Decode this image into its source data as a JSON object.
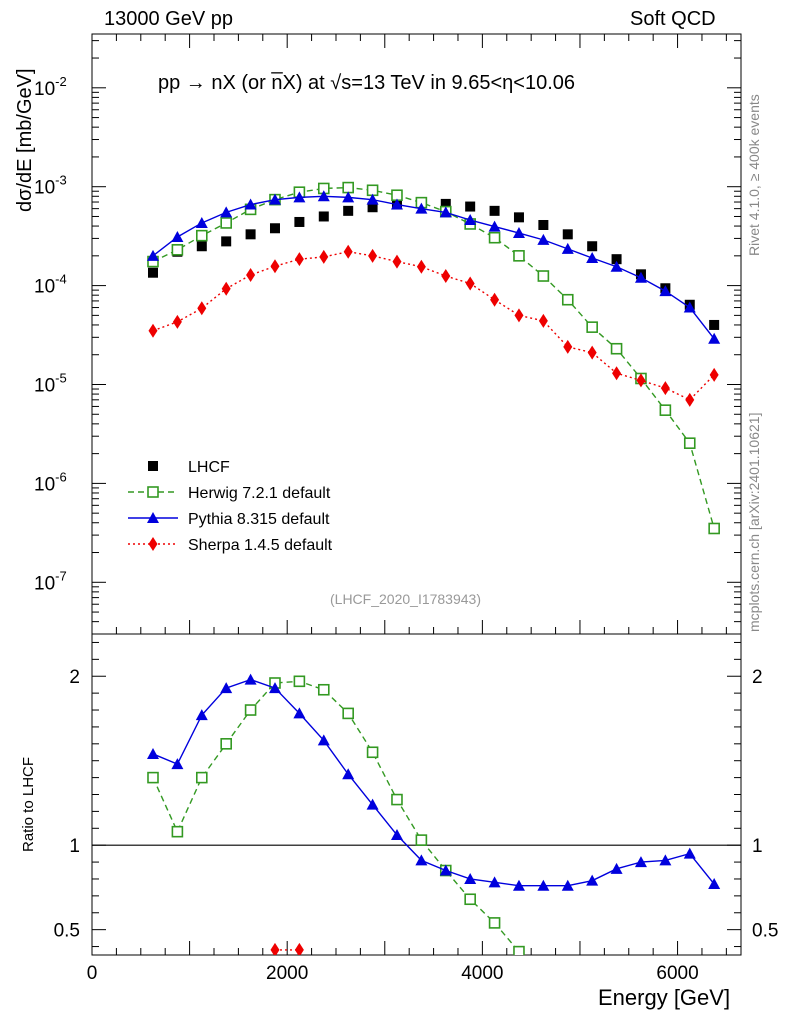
{
  "header": {
    "left": "13000 GeV pp",
    "right": "Soft QCD"
  },
  "side_labels": {
    "rivet": "Rivet 4.1.0, ≥ 400k events",
    "mcplots": "mcplots.cern.ch [arXiv:2401.10621]"
  },
  "analysis_tag": "(LHCF_2020_I1783943)",
  "colors": {
    "lhcf": "#000000",
    "herwig": "#339922",
    "pythia": "#0000dd",
    "sherpa": "#ee0000"
  },
  "chart_data": [
    {
      "type": "line",
      "panel": "main",
      "title": "pp → nX (or n̅X) at √s=13 TeV in 9.65<η<10.06",
      "xlabel": "Energy [GeV]",
      "ylabel": "dσ/dE [mb/GeV]",
      "yscale": "log",
      "xlim": [
        0,
        6650
      ],
      "ylim": [
        3e-08,
        0.035
      ],
      "x_ticks": [
        0,
        2000,
        4000,
        6000
      ],
      "y_ticks": [
        "10^-7",
        "10^-6",
        "10^-5",
        "10^-4",
        "10^-3",
        "10^-2"
      ],
      "x": [
        625,
        875,
        1125,
        1375,
        1625,
        1875,
        2125,
        2375,
        2625,
        2875,
        3125,
        3375,
        3625,
        3875,
        4125,
        4375,
        4625,
        4875,
        5125,
        5375,
        5625,
        5875,
        6125,
        6375
      ],
      "series": [
        {
          "name": "LHCF",
          "style": "markers",
          "marker": "square-filled",
          "values": [
            0.000135,
            0.00022,
            0.00025,
            0.00028,
            0.00033,
            0.00038,
            0.00044,
            0.0005,
            0.00057,
            0.00062,
            0.00066,
            0.0007,
            0.00067,
            0.00063,
            0.00057,
            0.00049,
            0.00041,
            0.00033,
            0.00025,
            0.000185,
            0.00013,
            9.4e-05,
            6.4e-05,
            4e-05
          ]
        },
        {
          "name": "Herwig 7.2.1 default",
          "style": "dashed",
          "marker": "square-open",
          "values": [
            0.000175,
            0.00023,
            0.00032,
            0.00043,
            0.00059,
            0.00074,
            0.00088,
            0.00096,
            0.00098,
            0.00092,
            0.00082,
            0.00069,
            0.00056,
            0.00042,
            0.000305,
            0.0002,
            0.000125,
            7.2e-05,
            3.8e-05,
            2.3e-05,
            1.15e-05,
            5.5e-06,
            2.55e-06,
            3.5e-07
          ]
        },
        {
          "name": "Pythia 8.315 default",
          "style": "solid",
          "marker": "triangle-filled",
          "values": [
            0.0002,
            0.00031,
            0.00043,
            0.00055,
            0.00066,
            0.00074,
            0.00078,
            0.0008,
            0.00078,
            0.00074,
            0.00066,
            0.0006,
            0.00055,
            0.00046,
            0.000395,
            0.00034,
            0.00029,
            0.000235,
            0.00019,
            0.000155,
            0.00012,
            8.8e-05,
            6e-05,
            2.9e-05
          ]
        },
        {
          "name": "Sherpa 1.4.5 default",
          "style": "dotted",
          "marker": "diamond-filled",
          "values": [
            3.5e-05,
            4.3e-05,
            5.9e-05,
            9.3e-05,
            0.000128,
            0.000157,
            0.000185,
            0.000195,
            0.00022,
            0.0002,
            0.000175,
            0.000155,
            0.000125,
            0.000105,
            7.2e-05,
            5e-05,
            4.4e-05,
            2.4e-05,
            2.1e-05,
            1.3e-05,
            1.1e-05,
            9.2e-06,
            7e-06,
            1.25e-05
          ]
        }
      ]
    },
    {
      "type": "line",
      "panel": "ratio",
      "xlabel": "Energy [GeV]",
      "ylabel": "Ratio to LHCF",
      "ylim": [
        0.35,
        2.25
      ],
      "y_ticks": [
        0.5,
        1,
        2
      ],
      "x_ticks": [
        0,
        2000,
        4000,
        6000
      ],
      "reference_line": 1,
      "x": [
        625,
        875,
        1125,
        1375,
        1625,
        1875,
        2125,
        2375,
        2625,
        2875,
        3125,
        3375,
        3625,
        3875,
        4125,
        4375,
        4625,
        4875,
        5125,
        5375,
        5625,
        5875,
        6125,
        6375
      ],
      "series": [
        {
          "name": "Herwig 7.2.1 default",
          "style": "dashed",
          "marker": "square-open",
          "values": [
            1.4,
            1.08,
            1.4,
            1.6,
            1.8,
            1.96,
            1.97,
            1.92,
            1.78,
            1.55,
            1.27,
            1.03,
            0.85,
            0.68,
            0.54,
            0.37,
            null,
            null,
            null,
            null,
            null,
            null,
            null,
            null
          ]
        },
        {
          "name": "Pythia 8.315 default",
          "style": "solid",
          "marker": "triangle-filled",
          "values": [
            1.54,
            1.48,
            1.77,
            1.93,
            1.98,
            1.93,
            1.78,
            1.62,
            1.42,
            1.24,
            1.06,
            0.91,
            0.85,
            0.8,
            0.78,
            0.76,
            0.76,
            0.76,
            0.79,
            0.86,
            0.9,
            0.91,
            0.95,
            0.77
          ]
        },
        {
          "name": "Sherpa 1.4.5 default",
          "style": "dotted",
          "marker": "diamond-filled",
          "values": [
            null,
            null,
            null,
            null,
            null,
            0.38,
            0.38,
            null,
            null,
            null,
            null,
            null,
            null,
            null,
            null,
            null,
            null,
            null,
            null,
            null,
            null,
            null,
            null,
            null
          ]
        }
      ]
    }
  ]
}
